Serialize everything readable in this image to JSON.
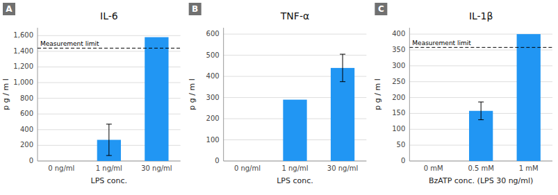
{
  "chart_data": [
    {
      "type": "bar",
      "title": "IL-6",
      "categories": [
        "0 ng/ml",
        "1 ng/ml",
        "30 ng/ml"
      ],
      "values": [
        0,
        270,
        1580
      ],
      "errors": [
        0,
        200,
        0
      ],
      "color": "#2196F3",
      "xlabel": "LPS conc.",
      "ylabel": "p g / m l",
      "ylim": [
        0,
        1700
      ],
      "yticks": [
        0,
        200,
        400,
        600,
        800,
        {
          "value": 1000,
          "label": "1,000"
        },
        {
          "value": 1200,
          "label": "1,200"
        },
        {
          "value": 1400,
          "label": "1,400"
        },
        {
          "value": 1600,
          "label": "1,600"
        }
      ],
      "grid": true,
      "annotations": [
        {
          "text": "A"
        },
        {
          "text": "Measurement limit",
          "y": 1440
        }
      ]
    },
    {
      "type": "bar",
      "title": "TNF-α",
      "categories": [
        "0 ng/ml",
        "1 ng/ml",
        "30 ng/ml"
      ],
      "values": [
        0,
        290,
        440
      ],
      "errors": [
        0,
        0,
        65
      ],
      "color": "#2196F3",
      "xlabel": "LPS conc.",
      "ylabel": "p g / m l",
      "ylim": [
        0,
        630
      ],
      "yticks": [
        0,
        100,
        200,
        300,
        400,
        500,
        600
      ],
      "grid": true,
      "annotations": [
        {
          "text": "B"
        }
      ]
    },
    {
      "type": "bar",
      "title": "IL-1β",
      "categories": [
        "0 mM",
        "0.5 mM",
        "1 mM"
      ],
      "values": [
        0,
        158,
        400
      ],
      "errors": [
        0,
        28,
        0
      ],
      "color": "#2196F3",
      "xlabel": "BzATP conc. (LPS 30 ng/ml)",
      "ylabel": "p g / m l",
      "ylim": [
        0,
        420
      ],
      "yticks": [
        0,
        50,
        100,
        150,
        200,
        250,
        300,
        350,
        400
      ],
      "grid": true,
      "annotations": [
        {
          "text": "C"
        },
        {
          "text": "Measurement limit",
          "y": 358
        }
      ]
    }
  ]
}
